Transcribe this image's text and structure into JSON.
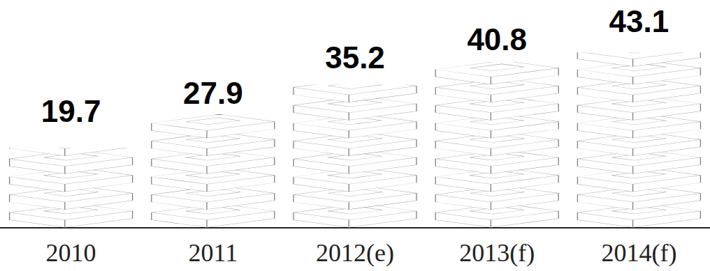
{
  "chart_data": {
    "type": "bar",
    "categories": [
      "2010",
      "2011",
      "2012(e)",
      "2013(f)",
      "2014(f)"
    ],
    "values": [
      19.7,
      27.9,
      35.2,
      40.8,
      43.1
    ],
    "color": "#808080",
    "ylim": [
      0,
      50
    ],
    "grid": false,
    "data_labels": true,
    "tick_labels": "x"
  }
}
